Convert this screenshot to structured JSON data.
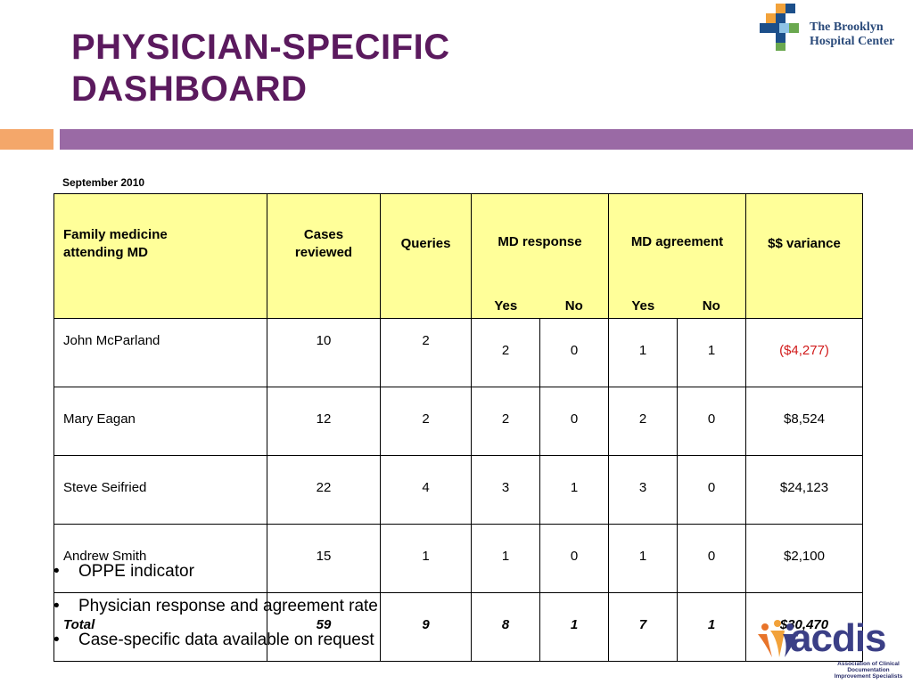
{
  "slide": {
    "title_line1": "PHYSICIAN-SPECIFIC",
    "title_line2": "DASHBOARD",
    "logo_top": {
      "line1": "The Brooklyn",
      "line2": "Hospital Center"
    },
    "period": "September 2010",
    "colors": {
      "title": "#5b1a5e",
      "accent_left": "#f4a76a",
      "accent_right": "#9a6aa5",
      "header_fill": "#ffff99",
      "negative": "#d11a1a"
    }
  },
  "table": {
    "headers": {
      "name_line1": "Family medicine",
      "name_line2": "attending MD",
      "cases_line1": "Cases",
      "cases_line2": "reviewed",
      "queries": "Queries",
      "md_response": "MD response",
      "md_agreement": "MD agreement",
      "variance": "$$ variance",
      "yes": "Yes",
      "no": "No"
    },
    "rows": [
      {
        "name": "John McParland",
        "cases": "10",
        "queries": "2",
        "resp_yes": "2",
        "resp_no": "0",
        "agree_yes": "1",
        "agree_no": "1",
        "variance": "($4,277)"
      },
      {
        "name": "Mary Eagan",
        "cases": "12",
        "queries": "2",
        "resp_yes": "2",
        "resp_no": "0",
        "agree_yes": "2",
        "agree_no": "0",
        "variance": "$8,524"
      },
      {
        "name": "Steve Seifried",
        "cases": "22",
        "queries": "4",
        "resp_yes": "3",
        "resp_no": "1",
        "agree_yes": "3",
        "agree_no": "0",
        "variance": "$24,123"
      },
      {
        "name": "Andrew Smith",
        "cases": "15",
        "queries": "1",
        "resp_yes": "1",
        "resp_no": "0",
        "agree_yes": "1",
        "agree_no": "0",
        "variance": "$2,100"
      }
    ],
    "total": {
      "name": "Total",
      "cases": "59",
      "queries": "9",
      "resp_yes": "8",
      "resp_no": "1",
      "agree_yes": "7",
      "agree_no": "1",
      "variance": "$30,470"
    }
  },
  "bullets": [
    "OPPE indicator",
    "Physician response and agreement rate",
    "Case-specific data available on request"
  ],
  "bullet_char": "•",
  "logo_bottom": {
    "word": "acdis",
    "tagline1": "Association of Clinical Documentation",
    "tagline2": "Improvement Specialists"
  }
}
